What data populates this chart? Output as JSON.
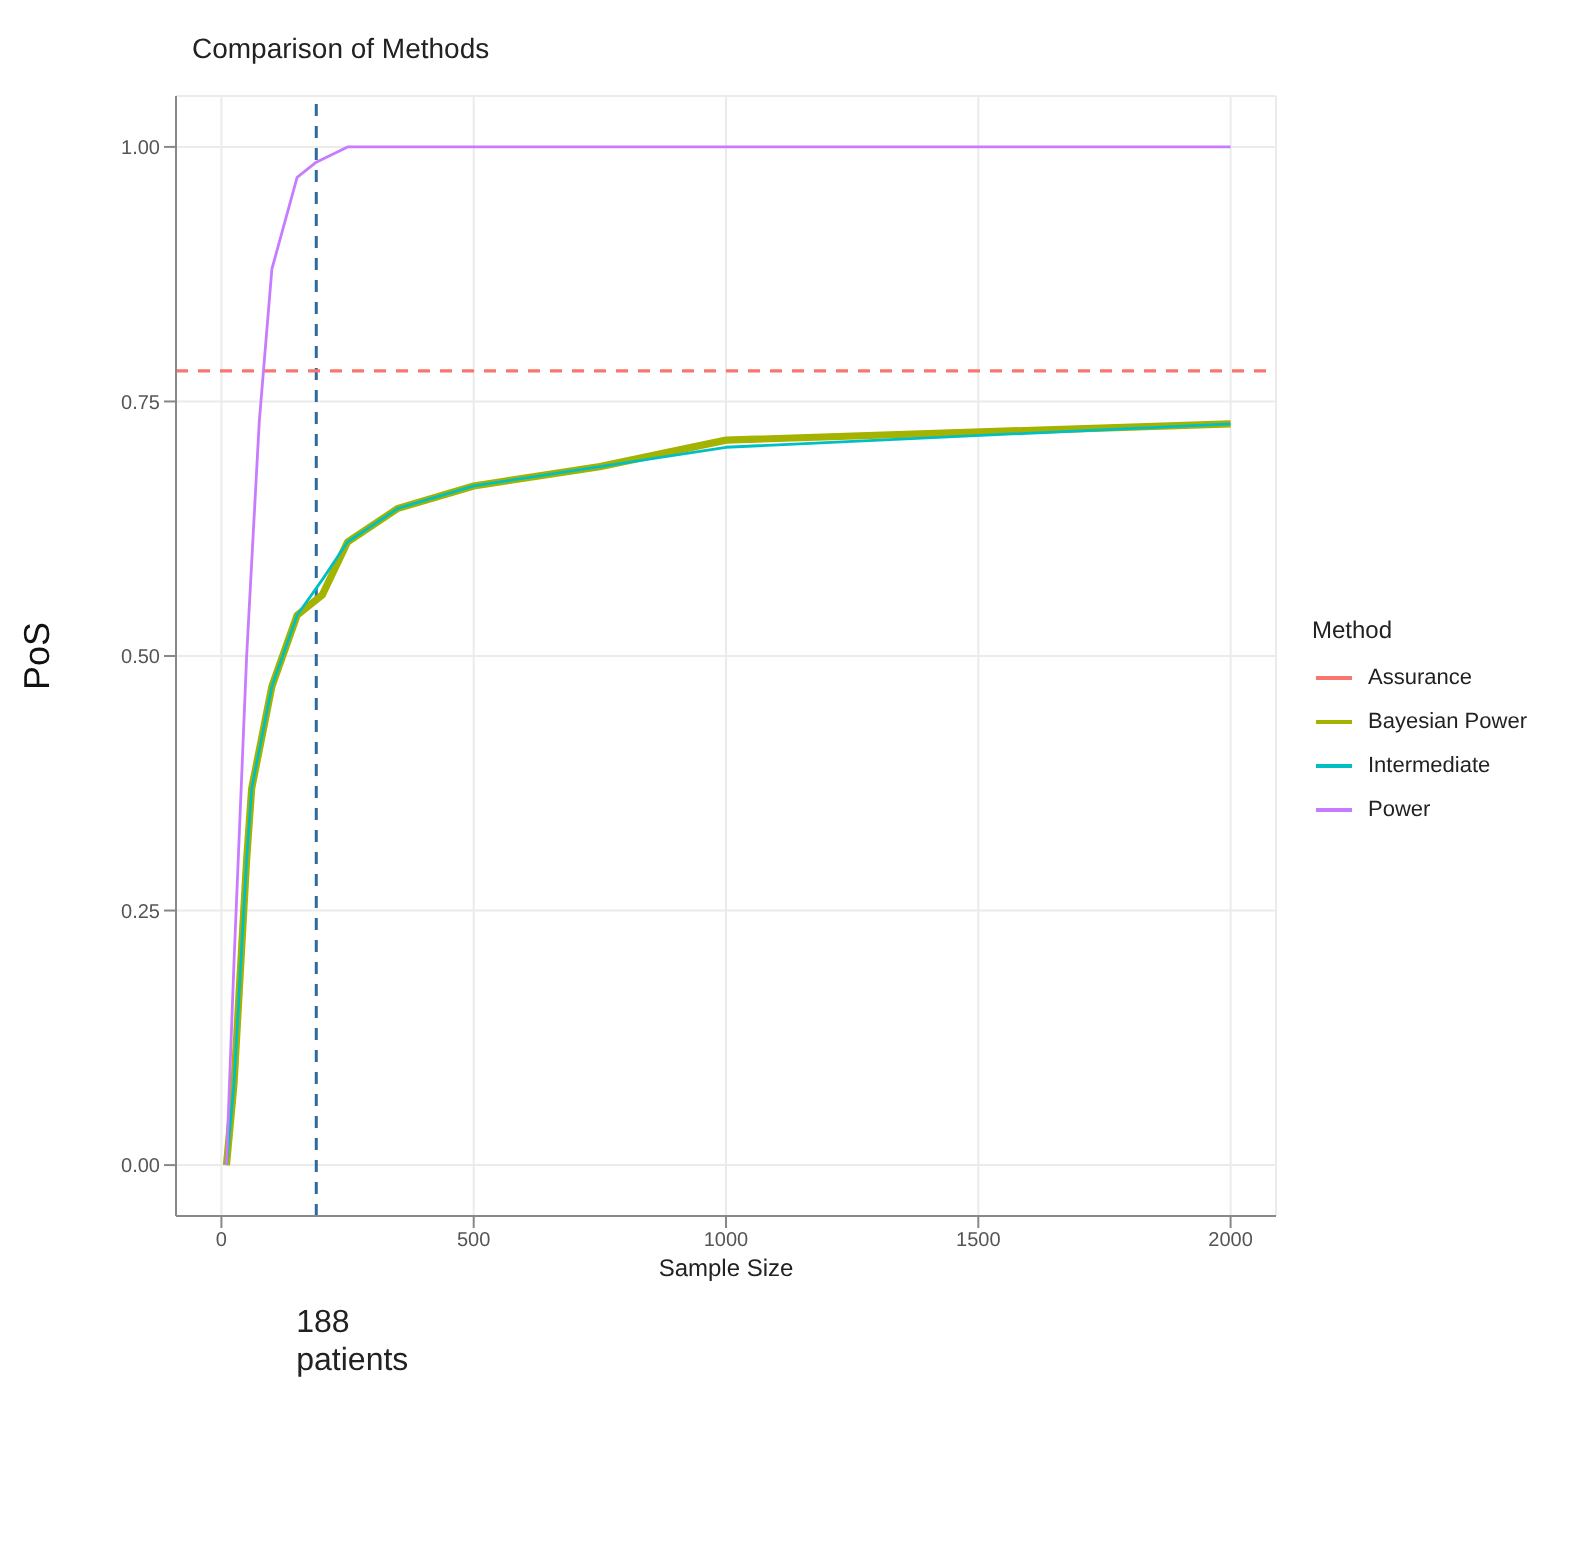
{
  "chart_data": {
    "type": "line",
    "title": "Comparison of Methods",
    "xlabel": "Sample Size",
    "ylabel": "PoS",
    "legend_title": "Method",
    "xlim": [
      -90,
      2090
    ],
    "xticks": [
      0,
      500,
      1000,
      1500,
      2000
    ],
    "ylim": [
      -0.05,
      1.05
    ],
    "yticks": [
      {
        "value": 0,
        "label": "0.00"
      },
      {
        "value": 0.25,
        "label": "0.25"
      },
      {
        "value": 0.5,
        "label": "0.50"
      },
      {
        "value": 0.75,
        "label": "0.75"
      },
      {
        "value": 1,
        "label": "1.00"
      }
    ],
    "grid": true,
    "legend": "right",
    "series": [
      {
        "name": "Assurance",
        "color": "#f8766d",
        "line_style": "dashed",
        "x": [
          -90,
          2090
        ],
        "values": [
          0.78,
          0.78
        ]
      },
      {
        "name": "Bayesian Power",
        "color": "#a3b300",
        "x": [
          10,
          25,
          50,
          60,
          100,
          150,
          200,
          250,
          350,
          500,
          750,
          1000,
          2000
        ],
        "values": [
          0,
          0.08,
          0.3,
          0.37,
          0.47,
          0.54,
          0.56,
          0.612,
          0.645,
          0.667,
          0.686,
          0.712,
          0.728
        ]
      },
      {
        "name": "Intermediate",
        "color": "#00bfc4",
        "x": [
          10,
          25,
          50,
          60,
          100,
          150,
          200,
          250,
          350,
          500,
          750,
          1000,
          2000
        ],
        "values": [
          0,
          0.08,
          0.3,
          0.37,
          0.47,
          0.54,
          0.575,
          0.612,
          0.645,
          0.667,
          0.686,
          0.705,
          0.728
        ]
      },
      {
        "name": "Power",
        "color": "#c77cff",
        "x": [
          10,
          25,
          50,
          75,
          100,
          150,
          188,
          250,
          500,
          1000,
          2000
        ],
        "values": [
          0,
          0.2,
          0.5,
          0.73,
          0.88,
          0.97,
          0.985,
          1,
          1,
          1,
          1
        ]
      }
    ],
    "ref_lines": [
      {
        "axis": "x",
        "value": 188,
        "label": "188 patients",
        "color": "#2e6a9e",
        "line_style": "dashed"
      }
    ]
  }
}
